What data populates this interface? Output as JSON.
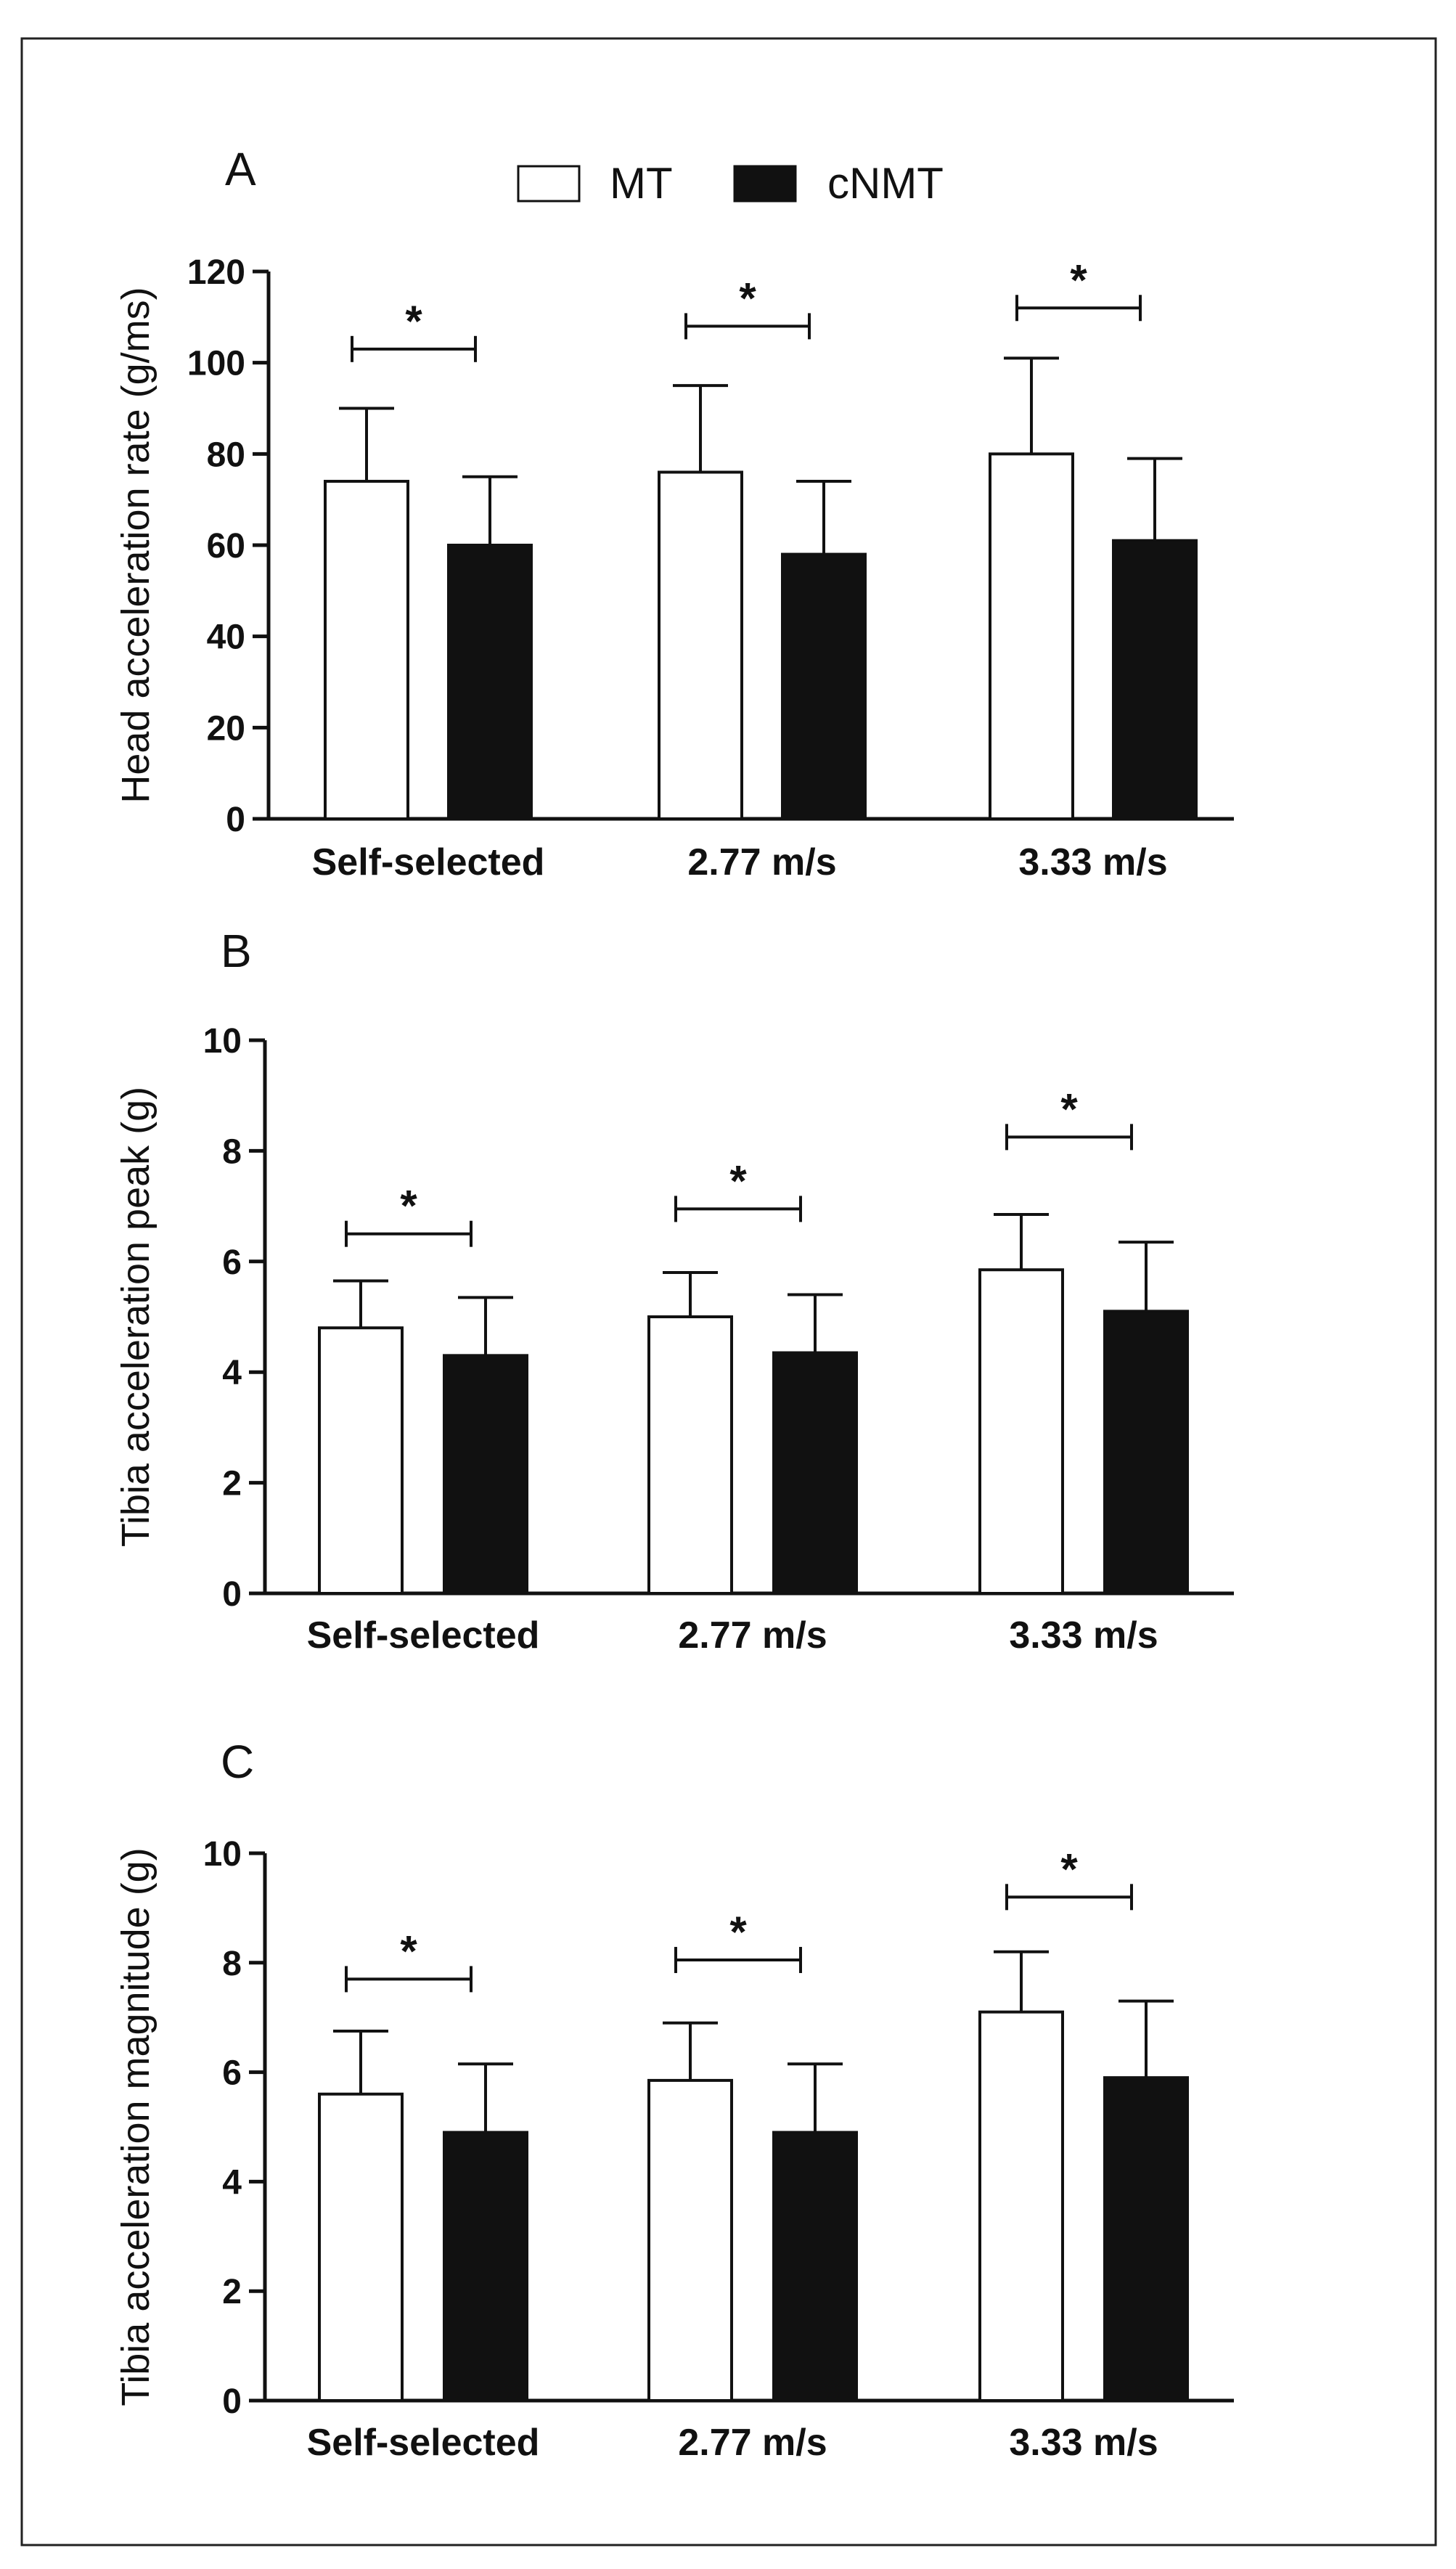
{
  "legend": [
    {
      "label": "MT",
      "color": "#ffffff"
    },
    {
      "label": "cNMT",
      "color": "#111111"
    }
  ],
  "chart_data": [
    {
      "type": "bar",
      "panel": "A",
      "categories": [
        "Self-selected",
        "2.77 m/s",
        "3.33 m/s"
      ],
      "series": [
        {
          "name": "MT",
          "values": [
            74,
            76,
            80
          ],
          "errors": [
            16,
            19,
            21
          ],
          "color": "#ffffff"
        },
        {
          "name": "cNMT",
          "values": [
            60,
            58,
            61
          ],
          "errors": [
            15,
            16,
            18
          ],
          "color": "#111111"
        }
      ],
      "ylabel": "Head acceleration rate (g/ms)",
      "xlabel": "",
      "ylim": [
        0,
        120
      ],
      "yticks": [
        0,
        20,
        40,
        60,
        80,
        100,
        120
      ],
      "yticklabels": [
        "0",
        "20",
        "40",
        "60",
        "80",
        "100",
        "120"
      ],
      "significance": [
        "*",
        "*",
        "*"
      ],
      "sig_heights": [
        103,
        108,
        112
      ]
    },
    {
      "type": "bar",
      "panel": "B",
      "categories": [
        "Self-selected",
        "2.77 m/s",
        "3.33 m/s"
      ],
      "series": [
        {
          "name": "MT",
          "values": [
            4.8,
            5.0,
            5.85
          ],
          "errors": [
            0.85,
            0.8,
            1.0
          ],
          "color": "#ffffff"
        },
        {
          "name": "cNMT",
          "values": [
            4.3,
            4.35,
            5.1
          ],
          "errors": [
            1.05,
            1.05,
            1.25
          ],
          "color": "#111111"
        }
      ],
      "ylabel": "Tibia acceleration peak (g)",
      "xlabel": "",
      "ylim": [
        0,
        10
      ],
      "yticks": [
        0,
        2,
        4,
        6,
        8,
        10
      ],
      "yticklabels": [
        "0",
        "2",
        "4",
        "6",
        "8",
        "10"
      ],
      "significance": [
        "*",
        "*",
        "*"
      ],
      "sig_heights": [
        6.5,
        6.95,
        8.25
      ]
    },
    {
      "type": "bar",
      "panel": "C",
      "categories": [
        "Self-selected",
        "2.77 m/s",
        "3.33 m/s"
      ],
      "series": [
        {
          "name": "MT",
          "values": [
            5.6,
            5.85,
            7.1
          ],
          "errors": [
            1.15,
            1.05,
            1.1
          ],
          "color": "#ffffff"
        },
        {
          "name": "cNMT",
          "values": [
            4.9,
            4.9,
            5.9
          ],
          "errors": [
            1.25,
            1.25,
            1.4
          ],
          "color": "#111111"
        }
      ],
      "ylabel": "Tibia acceleration magnitude (g)",
      "xlabel": "",
      "ylim": [
        0,
        10
      ],
      "yticks": [
        0,
        2,
        4,
        6,
        8,
        10
      ],
      "yticklabels": [
        "0",
        "2",
        "4",
        "6",
        "8",
        "10"
      ],
      "significance": [
        "*",
        "*",
        "*"
      ],
      "sig_heights": [
        7.7,
        8.05,
        9.2
      ]
    }
  ]
}
